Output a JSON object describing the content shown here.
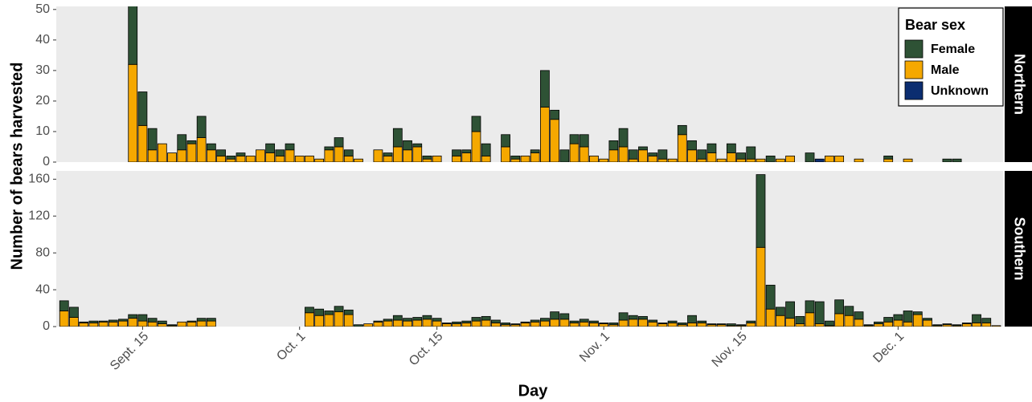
{
  "chart_data": {
    "type": "stacked_bar",
    "x_label": "Day",
    "y_label": "Number of bears harvested",
    "legend": {
      "title": "Bear sex",
      "position": "top-right"
    },
    "series": [
      {
        "name": "Female",
        "color": "#2e5235"
      },
      {
        "name": "Male",
        "color": "#f5a800"
      },
      {
        "name": "Unknown",
        "color": "#0b2d70"
      }
    ],
    "xlim": [
      6.2,
      102.7
    ],
    "xticks": [
      {
        "value": 15,
        "label": "Sept. 15"
      },
      {
        "value": 31,
        "label": "Oct. 1"
      },
      {
        "value": 45,
        "label": "Oct. 15"
      },
      {
        "value": 62,
        "label": "Nov. 1"
      },
      {
        "value": 76,
        "label": "Nov. 15"
      },
      {
        "value": 92,
        "label": "Dec. 1"
      }
    ],
    "grid": false,
    "facets": [
      {
        "strip": "Northern",
        "ylim": [
          0,
          51
        ],
        "yticks": [
          0,
          10,
          20,
          30,
          40,
          50
        ],
        "x": [
          14,
          15,
          16,
          17,
          18,
          19,
          20,
          21,
          22,
          23,
          24,
          25,
          26,
          27,
          28,
          29,
          30,
          31,
          32,
          33,
          34,
          35,
          36,
          37,
          39,
          40,
          41,
          42,
          43,
          44,
          45,
          47,
          48,
          49,
          50,
          52,
          53,
          54,
          55,
          56,
          57,
          58,
          59,
          60,
          61,
          62,
          63,
          64,
          65,
          66,
          67,
          68,
          69,
          70,
          71,
          72,
          73,
          74,
          75,
          76,
          77,
          78,
          79,
          80,
          81,
          83,
          84,
          85,
          86,
          88,
          91,
          93,
          97,
          98
        ],
        "values": [
          [
            20,
            11,
            7,
            0,
            0,
            5,
            1,
            7,
            2,
            2,
            1,
            1,
            0,
            0,
            3,
            2,
            2,
            0,
            0,
            0,
            1,
            3,
            2,
            0,
            0,
            1,
            6,
            3,
            1,
            1,
            0,
            2,
            1,
            5,
            4,
            4,
            1,
            0,
            1,
            12,
            3,
            4,
            3,
            4,
            0,
            0,
            3,
            6,
            3,
            1,
            1,
            3,
            0,
            3,
            3,
            3,
            3,
            0,
            3,
            2,
            4,
            0,
            2,
            0,
            0,
            3,
            0,
            0,
            0,
            0,
            1,
            0,
            1,
            1
          ],
          [
            32,
            12,
            4,
            6,
            3,
            4,
            6,
            8,
            4,
            2,
            1,
            2,
            2,
            4,
            3,
            2,
            4,
            2,
            2,
            1,
            4,
            5,
            2,
            1,
            4,
            2,
            5,
            4,
            5,
            1,
            2,
            2,
            3,
            10,
            2,
            5,
            1,
            2,
            3,
            18,
            14,
            0,
            6,
            5,
            2,
            1,
            4,
            5,
            1,
            4,
            2,
            1,
            1,
            9,
            4,
            1,
            3,
            1,
            3,
            1,
            1,
            1,
            0,
            1,
            2,
            0,
            0,
            2,
            2,
            1,
            1,
            1,
            0,
            0
          ],
          [
            0,
            0,
            0,
            0,
            0,
            0,
            0,
            0,
            0,
            0,
            0,
            0,
            0,
            0,
            0,
            0,
            0,
            0,
            0,
            0,
            0,
            0,
            0,
            0,
            0,
            0,
            0,
            0,
            0,
            0,
            0,
            0,
            0,
            0,
            0,
            0,
            0,
            0,
            0,
            0,
            0,
            0,
            0,
            0,
            0,
            0,
            0,
            0,
            0,
            0,
            0,
            0,
            0,
            0,
            0,
            0,
            0,
            0,
            0,
            0,
            0,
            0,
            0,
            0,
            0,
            0,
            1,
            0,
            0,
            0,
            0,
            0,
            0,
            0
          ]
        ]
      },
      {
        "strip": "Southern",
        "ylim": [
          0,
          169
        ],
        "yticks": [
          0,
          40,
          80,
          120,
          160
        ],
        "x": [
          7,
          8,
          9,
          10,
          11,
          12,
          13,
          14,
          15,
          16,
          17,
          18,
          19,
          20,
          21,
          22,
          32,
          33,
          34,
          35,
          36,
          37,
          38,
          39,
          40,
          41,
          42,
          43,
          44,
          45,
          46,
          47,
          48,
          49,
          50,
          51,
          52,
          53,
          54,
          55,
          56,
          57,
          58,
          59,
          60,
          61,
          62,
          63,
          64,
          65,
          66,
          67,
          68,
          69,
          70,
          71,
          72,
          73,
          74,
          75,
          76,
          77,
          78,
          79,
          80,
          81,
          82,
          83,
          84,
          85,
          86,
          87,
          88,
          89,
          90,
          91,
          92,
          93,
          94,
          95,
          96,
          97,
          98,
          99,
          100,
          101,
          102
        ],
        "values": [
          [
            11,
            11,
            1,
            2,
            1,
            2,
            2,
            4,
            7,
            4,
            3,
            1,
            0,
            1,
            3,
            3,
            6,
            7,
            4,
            6,
            5,
            2,
            0,
            1,
            2,
            5,
            3,
            3,
            4,
            3,
            1,
            2,
            2,
            4,
            4,
            3,
            2,
            1,
            1,
            2,
            3,
            8,
            6,
            2,
            3,
            2,
            1,
            2,
            8,
            4,
            3,
            2,
            1,
            2,
            2,
            8,
            2,
            1,
            1,
            2,
            1,
            2,
            79,
            26,
            9,
            18,
            8,
            13,
            24,
            5,
            15,
            10,
            8,
            1,
            2,
            5,
            6,
            12,
            3,
            2,
            1,
            1,
            1,
            1,
            9,
            5,
            0
          ],
          [
            17,
            10,
            4,
            4,
            5,
            5,
            6,
            9,
            6,
            5,
            3,
            1,
            5,
            5,
            6,
            6,
            15,
            12,
            13,
            16,
            13,
            0,
            3,
            5,
            6,
            7,
            6,
            7,
            8,
            6,
            3,
            3,
            4,
            6,
            7,
            4,
            2,
            2,
            4,
            5,
            6,
            8,
            8,
            4,
            5,
            4,
            3,
            2,
            7,
            8,
            8,
            5,
            3,
            4,
            2,
            4,
            4,
            2,
            2,
            1,
            1,
            4,
            86,
            19,
            12,
            9,
            3,
            15,
            3,
            1,
            14,
            12,
            8,
            1,
            3,
            5,
            7,
            5,
            13,
            7,
            1,
            2,
            1,
            3,
            4,
            4,
            1
          ]
        ]
      }
    ]
  }
}
